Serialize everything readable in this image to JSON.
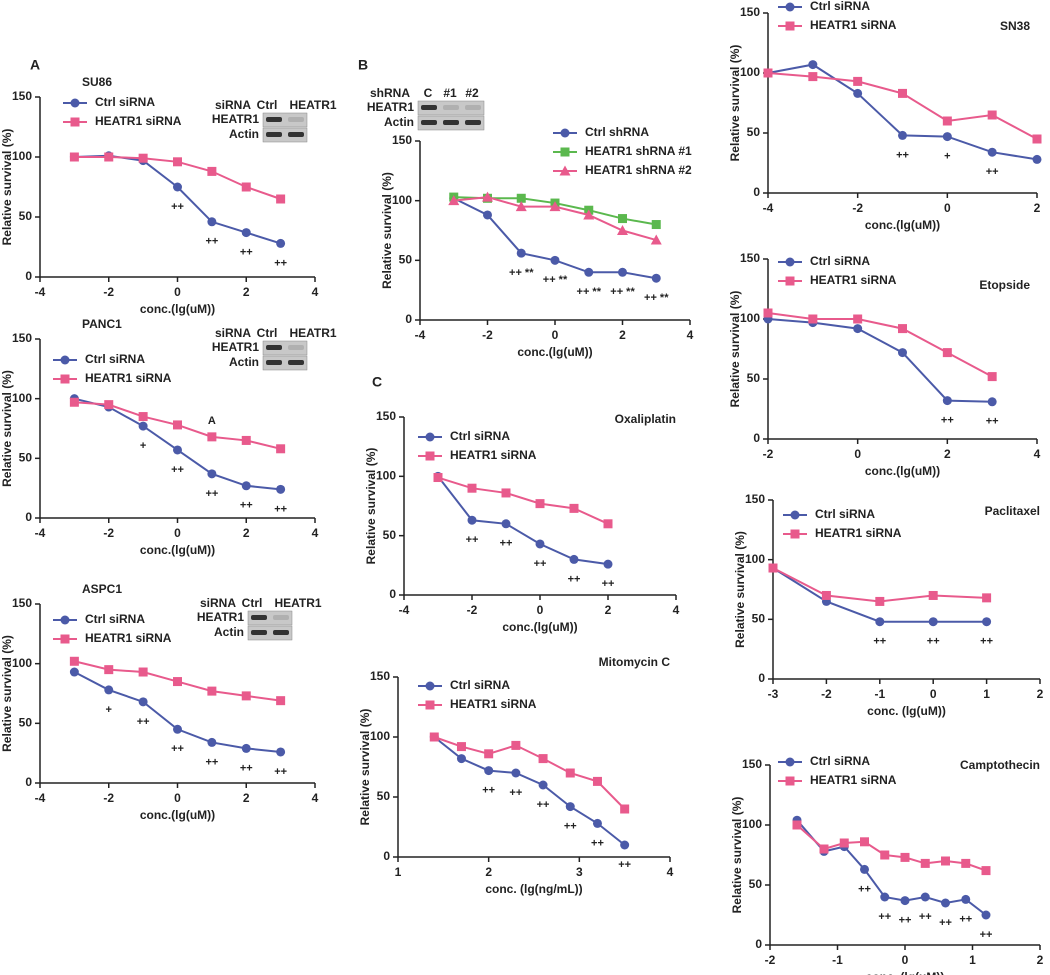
{
  "chart_data": [
    {
      "type": "line",
      "panel": "A",
      "title": "SU86",
      "x_label": "conc.(lg(uM))",
      "y_label": "Relative survival (%)",
      "xlim": [
        -4,
        4
      ],
      "xticks": [
        -4,
        -2,
        0,
        2,
        4
      ],
      "ylim": [
        0,
        150
      ],
      "yticks": [
        0,
        50,
        100,
        150
      ],
      "x": [
        -3,
        -2,
        -1,
        0,
        1,
        2,
        3
      ],
      "series": [
        {
          "name": "Ctrl siRNA",
          "color": "#4b5aa8",
          "marker": "circle",
          "values": [
            100,
            101,
            97,
            75,
            46,
            37,
            28
          ]
        },
        {
          "name": "HEATR1 siRNA",
          "color": "#e85a8c",
          "marker": "square",
          "values": [
            100,
            100,
            99,
            96,
            88,
            75,
            65
          ]
        }
      ],
      "annotations": [
        {
          "x": 0,
          "text": "++"
        },
        {
          "x": 1,
          "text": "++"
        },
        {
          "x": 2,
          "text": "++"
        },
        {
          "x": 3,
          "text": "++"
        }
      ],
      "blot": {
        "header": [
          "siRNA",
          "Ctrl",
          "HEATR1"
        ],
        "rows": [
          "HEATR1",
          "Actin"
        ]
      }
    },
    {
      "type": "line",
      "title": "PANC1",
      "x_label": "conc.(lg(uM))",
      "y_label": "Relative survival (%)",
      "xlim": [
        -4,
        4
      ],
      "xticks": [
        -4,
        -2,
        0,
        2,
        4
      ],
      "ylim": [
        0,
        150
      ],
      "yticks": [
        0,
        50,
        100,
        150
      ],
      "x": [
        -3,
        -2,
        -1,
        0,
        1,
        2,
        3
      ],
      "series": [
        {
          "name": "Ctrl siRNA",
          "color": "#4b5aa8",
          "marker": "circle",
          "values": [
            100,
            93,
            77,
            57,
            37,
            27,
            24
          ]
        },
        {
          "name": "HEATR1 siRNA",
          "color": "#e85a8c",
          "marker": "square",
          "values": [
            97,
            95,
            85,
            78,
            68,
            65,
            58
          ]
        }
      ],
      "annotations": [
        {
          "x": -1,
          "text": "+"
        },
        {
          "x": 0,
          "text": "++"
        },
        {
          "x": 1,
          "text": "++"
        },
        {
          "x": 2,
          "text": "++"
        },
        {
          "x": 3,
          "text": "++"
        },
        {
          "x": 1,
          "text": "A",
          "position": "above"
        }
      ],
      "blot": {
        "header": [
          "siRNA",
          "Ctrl",
          "HEATR1"
        ],
        "rows": [
          "HEATR1",
          "Actin"
        ]
      }
    },
    {
      "type": "line",
      "title": "ASPC1",
      "x_label": "conc.(lg(uM))",
      "y_label": "Relative survival (%)",
      "xlim": [
        -4,
        4
      ],
      "xticks": [
        -4,
        -2,
        0,
        2,
        4
      ],
      "ylim": [
        0,
        150
      ],
      "yticks": [
        0,
        50,
        100,
        150
      ],
      "x": [
        -3,
        -2,
        -1,
        0,
        1,
        2,
        3
      ],
      "series": [
        {
          "name": "Ctrl siRNA",
          "color": "#4b5aa8",
          "marker": "circle",
          "values": [
            93,
            78,
            68,
            45,
            34,
            29,
            26
          ]
        },
        {
          "name": "HEATR1 siRNA",
          "color": "#e85a8c",
          "marker": "square",
          "values": [
            102,
            95,
            93,
            85,
            77,
            73,
            69
          ]
        }
      ],
      "annotations": [
        {
          "x": -2,
          "text": "+"
        },
        {
          "x": -1,
          "text": "++"
        },
        {
          "x": 0,
          "text": "++"
        },
        {
          "x": 1,
          "text": "++"
        },
        {
          "x": 2,
          "text": "++"
        },
        {
          "x": 3,
          "text": "++"
        }
      ],
      "blot": {
        "header": [
          "siRNA",
          "Ctrl",
          "HEATR1"
        ],
        "rows": [
          "HEATR1",
          "Actin"
        ]
      }
    },
    {
      "type": "line",
      "panel": "B",
      "x_label": "conc.(lg(uM))",
      "y_label": "Relative survival (%)",
      "xlim": [
        -4,
        4
      ],
      "xticks": [
        -4,
        -2,
        0,
        2,
        4
      ],
      "ylim": [
        0,
        150
      ],
      "yticks": [
        0,
        50,
        100,
        150
      ],
      "x": [
        -3,
        -2,
        -1,
        0,
        1,
        2,
        3
      ],
      "series": [
        {
          "name": "Ctrl shRNA",
          "color": "#4b5aa8",
          "marker": "circle",
          "values": [
            102,
            88,
            56,
            50,
            40,
            40,
            35
          ]
        },
        {
          "name": "HEATR1 shRNA #1",
          "color": "#5bb84e",
          "marker": "square",
          "values": [
            103,
            102,
            102,
            98,
            92,
            85,
            80
          ]
        },
        {
          "name": "HEATR1 shRNA #2",
          "color": "#e85a8c",
          "marker": "triangle",
          "values": [
            100,
            103,
            95,
            95,
            88,
            75,
            67
          ]
        }
      ],
      "annotations": [
        {
          "x": -1,
          "text": "++ **"
        },
        {
          "x": 0,
          "text": "++ **"
        },
        {
          "x": 1,
          "text": "++ **"
        },
        {
          "x": 2,
          "text": "++ **"
        },
        {
          "x": 3,
          "text": "++ **"
        }
      ],
      "blot": {
        "header": [
          "shRNA",
          "C",
          "#1",
          "#2"
        ],
        "rows": [
          "HEATR1",
          "Actin"
        ]
      }
    },
    {
      "type": "line",
      "panel": "C",
      "title": "Oxaliplatin",
      "x_label": "conc.(lg(uM))",
      "y_label": "Relative survival (%)",
      "xlim": [
        -4,
        4
      ],
      "xticks": [
        -4,
        -2,
        0,
        2,
        4
      ],
      "ylim": [
        0,
        150
      ],
      "yticks": [
        0,
        50,
        100,
        150
      ],
      "x": [
        -3,
        -2,
        -1,
        0,
        1,
        2
      ],
      "series": [
        {
          "name": "Ctrl siRNA",
          "color": "#4b5aa8",
          "marker": "circle",
          "values": [
            100,
            63,
            60,
            43,
            30,
            26
          ]
        },
        {
          "name": "HEATR1 siRNA",
          "color": "#e85a8c",
          "marker": "square",
          "values": [
            99,
            90,
            86,
            77,
            73,
            60
          ]
        }
      ],
      "annotations": [
        {
          "x": -2,
          "text": "++"
        },
        {
          "x": -1,
          "text": "++"
        },
        {
          "x": 0,
          "text": "++"
        },
        {
          "x": 1,
          "text": "++"
        },
        {
          "x": 2,
          "text": "++"
        }
      ]
    },
    {
      "type": "line",
      "title": "Mitomycin C",
      "x_label": "conc. (lg(ng/mL))",
      "y_label": "Relative survival (%)",
      "xlim": [
        1,
        4
      ],
      "xticks": [
        1,
        2,
        3,
        4
      ],
      "ylim": [
        0,
        150
      ],
      "yticks": [
        0,
        50,
        100,
        150
      ],
      "x": [
        1.4,
        1.7,
        2,
        2.3,
        2.6,
        2.9,
        3.2,
        3.5
      ],
      "series": [
        {
          "name": "Ctrl siRNA",
          "color": "#4b5aa8",
          "marker": "circle",
          "values": [
            100,
            82,
            72,
            70,
            60,
            42,
            28,
            10
          ]
        },
        {
          "name": "HEATR1 siRNA",
          "color": "#e85a8c",
          "marker": "square",
          "values": [
            100,
            92,
            86,
            93,
            82,
            70,
            63,
            40
          ]
        }
      ],
      "annotations": [
        {
          "x": 2,
          "text": "++"
        },
        {
          "x": 2.3,
          "text": "++"
        },
        {
          "x": 2.6,
          "text": "++"
        },
        {
          "x": 2.9,
          "text": "++"
        },
        {
          "x": 3.2,
          "text": "++"
        },
        {
          "x": 3.5,
          "text": "++"
        }
      ]
    },
    {
      "type": "line",
      "title": "SN38",
      "x_label": "conc.(lg(uM))",
      "y_label": "Relative survival (%)",
      "xlim": [
        -4,
        2
      ],
      "xticks": [
        -4,
        -2,
        0,
        2
      ],
      "ylim": [
        0,
        150
      ],
      "yticks": [
        0,
        50,
        100,
        150
      ],
      "x": [
        -4,
        -3,
        -2,
        -1,
        0,
        1,
        2
      ],
      "series": [
        {
          "name": "Ctrl siRNA",
          "color": "#4b5aa8",
          "marker": "circle",
          "values": [
            100,
            107,
            83,
            48,
            47,
            34,
            28
          ]
        },
        {
          "name": "HEATR1 siRNA",
          "color": "#e85a8c",
          "marker": "square",
          "values": [
            100,
            97,
            93,
            83,
            60,
            65,
            45
          ]
        }
      ],
      "annotations": [
        {
          "x": -1,
          "text": "++"
        },
        {
          "x": 0,
          "text": "+"
        },
        {
          "x": 1,
          "text": "++"
        }
      ]
    },
    {
      "type": "line",
      "title": "Etopside",
      "x_label": "conc.(lg(uM))",
      "y_label": "Relative survival (%)",
      "xlim": [
        -2,
        4
      ],
      "xticks": [
        -2,
        0,
        2,
        4
      ],
      "ylim": [
        0,
        150
      ],
      "yticks": [
        0,
        50,
        100,
        150
      ],
      "x": [
        -2,
        -1,
        0,
        1,
        2,
        3
      ],
      "series": [
        {
          "name": "Ctrl siRNA",
          "color": "#4b5aa8",
          "marker": "circle",
          "values": [
            100,
            97,
            92,
            72,
            32,
            31
          ]
        },
        {
          "name": "HEATR1 siRNA",
          "color": "#e85a8c",
          "marker": "square",
          "values": [
            105,
            100,
            100,
            92,
            72,
            52
          ]
        }
      ],
      "annotations": [
        {
          "x": 2,
          "text": "++"
        },
        {
          "x": 3,
          "text": "++"
        }
      ]
    },
    {
      "type": "line",
      "title": "Paclitaxel",
      "x_label": "conc. (lg(uM))",
      "y_label": "Relative survival (%)",
      "xlim": [
        -3,
        2
      ],
      "xticks": [
        -3,
        -2,
        -1,
        0,
        1,
        2
      ],
      "ylim": [
        0,
        150
      ],
      "yticks": [
        0,
        50,
        100,
        150
      ],
      "x": [
        -3,
        -2,
        -1,
        0,
        1
      ],
      "series": [
        {
          "name": "Ctrl siRNA",
          "color": "#4b5aa8",
          "marker": "circle",
          "values": [
            93,
            65,
            48,
            48,
            48
          ]
        },
        {
          "name": "HEATR1 siRNA",
          "color": "#e85a8c",
          "marker": "square",
          "values": [
            93,
            70,
            65,
            70,
            68
          ]
        }
      ],
      "annotations": [
        {
          "x": -1,
          "text": "++"
        },
        {
          "x": 0,
          "text": "++"
        },
        {
          "x": 1,
          "text": "++"
        }
      ]
    },
    {
      "type": "line",
      "title": "Camptothecin",
      "x_label": "conc. (lg(uM))",
      "y_label": "Relative survival (%)",
      "xlim": [
        -2,
        2
      ],
      "xticks": [
        -2,
        -1,
        0,
        1,
        2
      ],
      "ylim": [
        0,
        150
      ],
      "yticks": [
        0,
        50,
        100,
        150
      ],
      "x": [
        -1.6,
        -1.2,
        -0.9,
        -0.6,
        -0.3,
        0,
        0.3,
        0.6,
        0.9,
        1.2
      ],
      "series": [
        {
          "name": "Ctrl siRNA",
          "color": "#4b5aa8",
          "marker": "circle",
          "values": [
            104,
            78,
            82,
            63,
            40,
            37,
            40,
            35,
            38,
            25
          ]
        },
        {
          "name": "HEATR1 siRNA",
          "color": "#e85a8c",
          "marker": "square",
          "values": [
            100,
            80,
            85,
            86,
            75,
            73,
            68,
            70,
            68,
            62
          ]
        }
      ],
      "annotations": [
        {
          "x": -0.6,
          "text": "++"
        },
        {
          "x": -0.3,
          "text": "++"
        },
        {
          "x": 0,
          "text": "++"
        },
        {
          "x": 0.3,
          "text": "++"
        },
        {
          "x": 0.6,
          "text": "++"
        },
        {
          "x": 0.9,
          "text": "++"
        },
        {
          "x": 1.2,
          "text": "++"
        }
      ]
    }
  ]
}
